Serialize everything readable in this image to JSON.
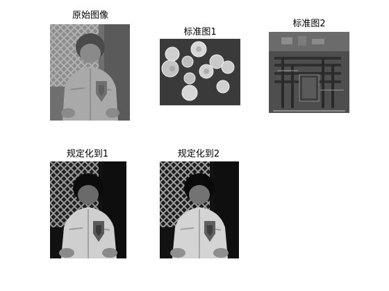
{
  "figure": {
    "background": "#ffffff",
    "panels": [
      {
        "id": "original",
        "title": "原始图像",
        "content": "grayscale photo of a child in a jacket, low contrast"
      },
      {
        "id": "reference1",
        "title": "标准图1",
        "content": "grayscale photo of coins on a dark background"
      },
      {
        "id": "reference2",
        "title": "标准图2",
        "content": "grayscale photo of a circuit board"
      },
      {
        "id": "matched1",
        "title": "规定化到1",
        "content": "histogram-matched child photo to reference 1 (high contrast)"
      },
      {
        "id": "matched2",
        "title": "规定化到2",
        "content": "histogram-matched child photo to reference 2 (high contrast)"
      }
    ]
  }
}
